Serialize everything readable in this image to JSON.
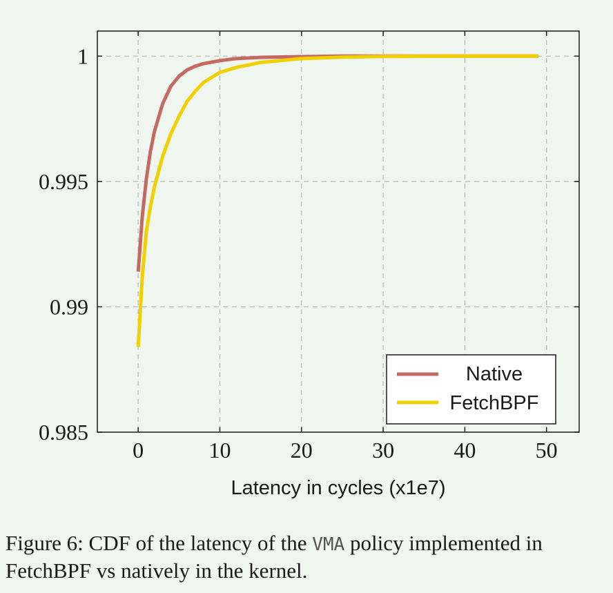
{
  "chart_data": {
    "type": "line",
    "xlabel": "Latency in cycles (x1e7)",
    "ylabel": "",
    "xlim": [
      -5,
      54
    ],
    "ylim": [
      0.985,
      1.001
    ],
    "x_ticks": [
      0,
      10,
      20,
      30,
      40,
      50
    ],
    "x_tick_labels": [
      "0",
      "10",
      "20",
      "30",
      "40",
      "50"
    ],
    "y_ticks": [
      0.985,
      0.99,
      0.995,
      1.0
    ],
    "y_tick_labels": [
      "0.985",
      "0.99",
      "0.995",
      "1"
    ],
    "grid": true,
    "legend_position": "bottom-right",
    "series": [
      {
        "name": "Native",
        "color": "#c46a62",
        "x": [
          0,
          0.5,
          1,
          1.5,
          2,
          3,
          4,
          5,
          6,
          7,
          8,
          10,
          12,
          15,
          20,
          25,
          30,
          40,
          49
        ],
        "y": [
          0.9914,
          0.9936,
          0.9951,
          0.9962,
          0.997,
          0.9981,
          0.9988,
          0.9992,
          0.99945,
          0.9996,
          0.9997,
          0.99982,
          0.9999,
          0.99995,
          0.99998,
          1.0,
          1.0,
          1.0,
          1.0
        ]
      },
      {
        "name": "FetchBPF",
        "color": "#f0d000",
        "x": [
          0,
          0.5,
          1,
          1.5,
          2,
          3,
          4,
          5,
          6,
          7,
          8,
          10,
          12,
          15,
          20,
          25,
          30,
          40,
          49
        ],
        "y": [
          0.9884,
          0.9912,
          0.993,
          0.994,
          0.9948,
          0.996,
          0.9969,
          0.9976,
          0.9982,
          0.9986,
          0.99895,
          0.99935,
          0.99955,
          0.99975,
          0.9999,
          0.99996,
          0.99999,
          1.0,
          1.0
        ]
      }
    ]
  },
  "caption": {
    "prefix": "Figure 6: CDF of the latency of the ",
    "code": "VMA",
    "suffix": " policy implemented in FetchBPF vs natively in the kernel."
  }
}
